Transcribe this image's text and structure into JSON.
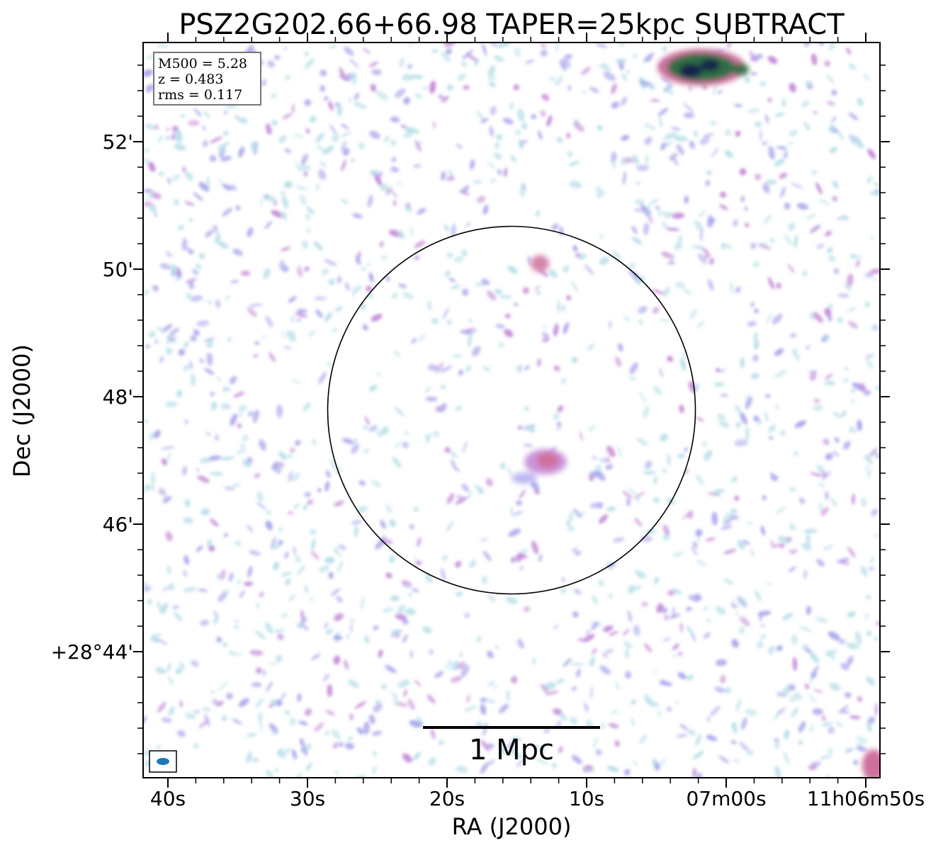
{
  "title": "PSZ2G202.66+66.98 TAPER=25kpc SUBTRACT",
  "axes": {
    "xlabel": "RA (J2000)",
    "ylabel": "Dec (J2000)",
    "x_ticks": [
      "40s",
      "30s",
      "20s",
      "10s",
      "07m00s",
      "11h06m50s"
    ],
    "y_ticks": [
      "52'",
      "50'",
      "48'",
      "46'",
      "+28°44'"
    ]
  },
  "info_box": {
    "m500": "M500 = 5.28",
    "z": "z = 0.483",
    "rms": "rms = 0.117"
  },
  "scale_bar": {
    "label": "1 Mpc"
  },
  "colors": {
    "noise_light": "#b8dfe8",
    "noise_blue": "#a9a6ec",
    "noise_purple": "#c489d6",
    "source_pink": "#cf6f9c",
    "source_green": "#2f6e45",
    "source_dark": "#12204a",
    "beam": "#1f77b4"
  }
}
